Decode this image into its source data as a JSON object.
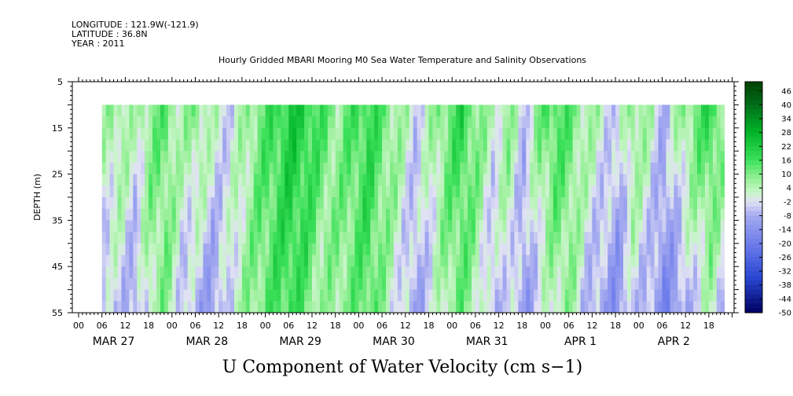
{
  "header": {
    "longitude": "LONGITUDE : 121.9W(-121.9)",
    "latitude": "LATITUDE : 36.8N",
    "year": "YEAR : 2011"
  },
  "chart_data": {
    "type": "heatmap",
    "title": "Hourly Gridded MBARI Mooring M0 Sea Water Temperature and Salinity Observations",
    "xlabel": "U Component of Water Velocity (cm s−1)",
    "ylabel": "DEPTH (m)",
    "ylim": [
      55,
      5
    ],
    "y_ticks": [
      5,
      15,
      25,
      35,
      45,
      55
    ],
    "hour_ticks": [
      "00",
      "06",
      "12",
      "18",
      "00",
      "06",
      "12",
      "18",
      "00",
      "06",
      "12",
      "18",
      "00",
      "06",
      "12",
      "18",
      "00",
      "06",
      "12",
      "18",
      "00",
      "06",
      "12",
      "18",
      "00",
      "06",
      "12",
      "18"
    ],
    "day_labels": [
      "MAR 27",
      "MAR 28",
      "MAR 29",
      "MAR 30",
      "MAR 31",
      "APR  1",
      "APR  2"
    ],
    "data_extent": {
      "depth_min": 10,
      "depth_max": 55,
      "start": "MAR 27 06",
      "end": "APR 2 ~22"
    },
    "colorbar": {
      "levels": [
        "46",
        "40",
        "34",
        "28",
        "22",
        "16",
        "10",
        "4",
        "-2",
        "-8",
        "-14",
        "-20",
        "-26",
        "-32",
        "-38",
        "-44",
        "-50"
      ],
      "range": [
        -50,
        50
      ]
    },
    "colors": {
      "neg_strong": "#000060",
      "neg_mid": "#3355dd",
      "neg_light": "#9999ee",
      "zero": "#e6e6f7",
      "pos_light": "#aaf0aa",
      "pos_mid": "#00dd33",
      "pos_strong": "#004000"
    },
    "field_profile": {
      "description_hours": [
        6,
        10,
        14,
        18,
        22,
        26,
        30,
        34,
        38,
        42,
        46,
        50,
        54,
        58,
        62,
        66,
        70,
        74,
        78,
        82,
        86,
        90,
        94,
        98,
        102,
        106,
        110,
        114,
        118,
        122,
        126,
        130,
        134,
        138,
        142,
        146,
        150,
        154,
        158,
        162,
        166
      ],
      "surface_u": [
        4,
        8,
        2,
        10,
        12,
        4,
        10,
        2,
        -2,
        4,
        12,
        16,
        22,
        20,
        14,
        8,
        14,
        18,
        12,
        6,
        -2,
        4,
        12,
        18,
        10,
        2,
        8,
        -4,
        10,
        16,
        12,
        6,
        2,
        -4,
        10,
        4,
        -6,
        6,
        12,
        18,
        8
      ],
      "bottom_u": [
        -6,
        -4,
        -10,
        4,
        8,
        -4,
        -8,
        -12,
        -2,
        6,
        10,
        14,
        16,
        12,
        4,
        8,
        10,
        14,
        6,
        -2,
        -10,
        -4,
        6,
        10,
        4,
        -8,
        -2,
        -12,
        -4,
        4,
        6,
        -6,
        -10,
        -14,
        -4,
        -8,
        -16,
        -12,
        -4,
        2,
        -6
      ]
    }
  }
}
